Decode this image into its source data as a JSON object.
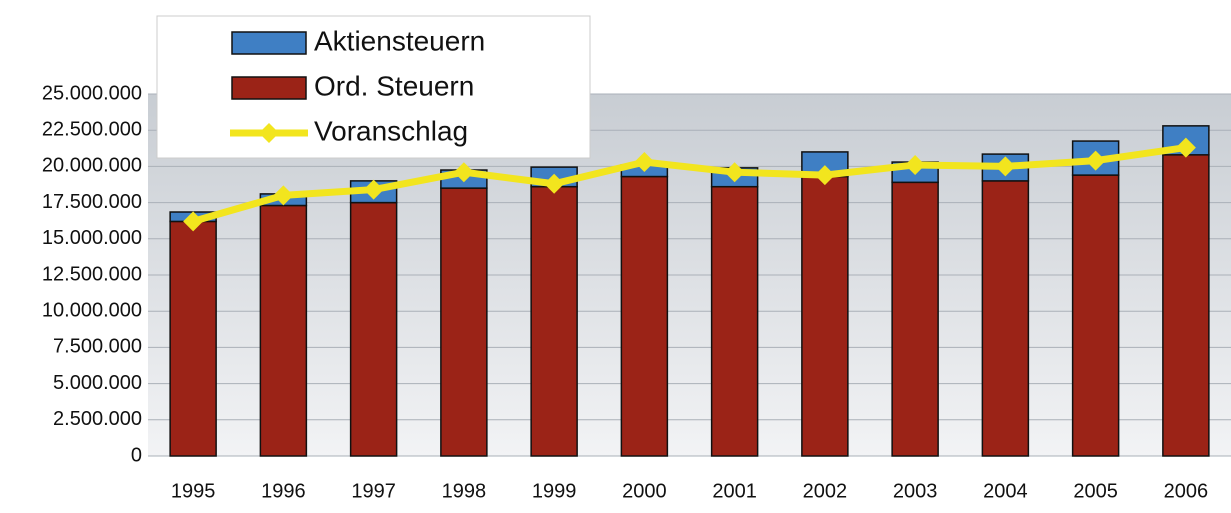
{
  "chart_data": {
    "type": "bar",
    "categories": [
      "1995",
      "1996",
      "1997",
      "1998",
      "1999",
      "2000",
      "2001",
      "2002",
      "2003",
      "2004",
      "2005",
      "2006"
    ],
    "series": [
      {
        "name": "Ord. Steuern",
        "color": "#9b2317",
        "values": [
          16200000,
          17300000,
          17500000,
          18500000,
          18600000,
          19300000,
          18600000,
          19300000,
          18900000,
          19000000,
          19400000,
          20800000
        ]
      },
      {
        "name": "Aktiensteuern",
        "color": "#3f7fc4",
        "values": [
          650000,
          800000,
          1500000,
          1250000,
          1350000,
          800000,
          1300000,
          1700000,
          1400000,
          1850000,
          2350000,
          2000000
        ]
      },
      {
        "name": "Voranschlag",
        "type": "line",
        "color": "#f2e51e",
        "values": [
          16200000,
          18000000,
          18400000,
          19600000,
          18800000,
          20300000,
          19600000,
          19400000,
          20100000,
          20000000,
          20400000,
          21300000
        ]
      }
    ],
    "ylim": [
      0,
      25000000
    ],
    "yticks": [
      0,
      {
        "value": 2500000,
        "label": "2.500.000"
      },
      {
        "value": 5000000,
        "label": "5.000.000"
      },
      {
        "value": 7500000,
        "label": "7.500.000"
      },
      {
        "value": 10000000,
        "label": "10.000.000"
      },
      {
        "value": 12500000,
        "label": "12.500.000"
      },
      {
        "value": 15000000,
        "label": "15.000.000"
      },
      {
        "value": 17500000,
        "label": "17.500.000"
      },
      {
        "value": 20000000,
        "label": "20.000.000"
      },
      {
        "value": 22500000,
        "label": "22.500.000"
      },
      {
        "value": 25000000,
        "label": "25.000.000"
      }
    ],
    "grid": true,
    "stacked": true,
    "legend": "top-left"
  }
}
